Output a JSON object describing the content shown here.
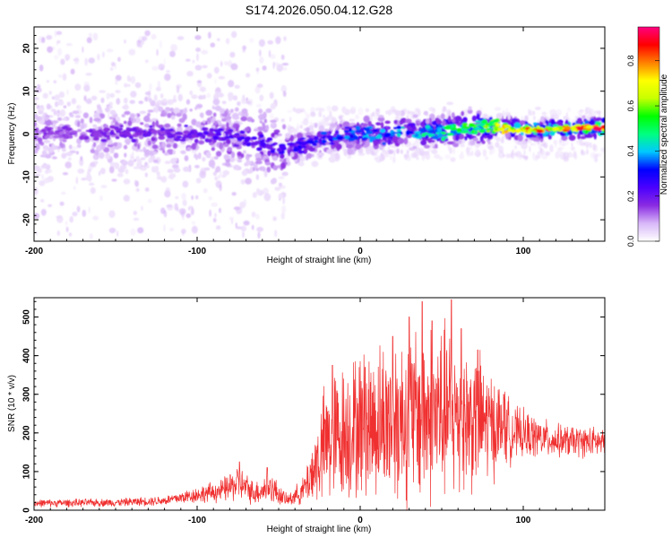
{
  "title": "S174.2026.050.04.12.G28",
  "chart_data": [
    {
      "type": "heatmap",
      "xlabel": "Height of straight line (km)",
      "ylabel": "Frequency (Hz)",
      "xlim": [
        -200,
        150
      ],
      "ylim": [
        -25,
        25
      ],
      "xticks": [
        -200,
        -100,
        0,
        100
      ],
      "yticks": [
        -20,
        -10,
        0,
        10,
        20
      ],
      "colorbar": {
        "label": "Normalized spectral amplitude",
        "range": [
          0.0,
          0.95
        ],
        "ticks": [
          0.0,
          0.2,
          0.4,
          0.6,
          0.8
        ],
        "stops": [
          "#ffffff",
          "#d8b8f8",
          "#8a2be2",
          "#4b00ff",
          "#0000ff",
          "#00c8ff",
          "#00ff80",
          "#00ff00",
          "#c8ff00",
          "#ffff00",
          "#ff8000",
          "#ff0000",
          "#ff0080"
        ]
      },
      "ridge_center_hz": [
        {
          "x": -200,
          "f": 0
        },
        {
          "x": -150,
          "f": 0.3
        },
        {
          "x": -100,
          "f": 0
        },
        {
          "x": -75,
          "f": -1
        },
        {
          "x": -50,
          "f": -3
        },
        {
          "x": -40,
          "f": -3
        },
        {
          "x": -20,
          "f": -1
        },
        {
          "x": 0,
          "f": 0
        },
        {
          "x": 40,
          "f": 0.5
        },
        {
          "x": 80,
          "f": 2
        },
        {
          "x": 100,
          "f": 1
        },
        {
          "x": 150,
          "f": 1.5
        }
      ],
      "amplitude_trend": [
        {
          "x": -200,
          "a": 0.15
        },
        {
          "x": -100,
          "a": 0.2
        },
        {
          "x": -50,
          "a": 0.25
        },
        {
          "x": 0,
          "a": 0.35
        },
        {
          "x": 50,
          "a": 0.45
        },
        {
          "x": 80,
          "a": 0.6
        },
        {
          "x": 100,
          "a": 0.75
        },
        {
          "x": 150,
          "a": 0.85
        }
      ]
    },
    {
      "type": "line",
      "xlabel": "Height of straight line (km)",
      "ylabel": "SNR (10 * v/v)",
      "xlim": [
        -200,
        150
      ],
      "ylim": [
        0,
        550
      ],
      "xticks": [
        -200,
        -100,
        0,
        100
      ],
      "yticks": [
        0,
        100,
        200,
        300,
        400,
        500
      ],
      "color": "#f03030",
      "envelope": [
        {
          "x": -200,
          "mean": 18,
          "spread": 12
        },
        {
          "x": -150,
          "mean": 20,
          "spread": 12
        },
        {
          "x": -120,
          "mean": 25,
          "spread": 15
        },
        {
          "x": -100,
          "mean": 40,
          "spread": 25
        },
        {
          "x": -85,
          "mean": 50,
          "spread": 35
        },
        {
          "x": -75,
          "mean": 70,
          "spread": 55
        },
        {
          "x": -65,
          "mean": 45,
          "spread": 35
        },
        {
          "x": -55,
          "mean": 60,
          "spread": 50
        },
        {
          "x": -45,
          "mean": 25,
          "spread": 18
        },
        {
          "x": -35,
          "mean": 50,
          "spread": 40
        },
        {
          "x": -20,
          "mean": 180,
          "spread": 200
        },
        {
          "x": 0,
          "mean": 220,
          "spread": 220
        },
        {
          "x": 25,
          "mean": 240,
          "spread": 260
        },
        {
          "x": 50,
          "mean": 250,
          "spread": 280
        },
        {
          "x": 75,
          "mean": 230,
          "spread": 200
        },
        {
          "x": 95,
          "mean": 200,
          "spread": 80
        },
        {
          "x": 120,
          "mean": 180,
          "spread": 50
        },
        {
          "x": 150,
          "mean": 175,
          "spread": 45
        }
      ],
      "peaks": [
        {
          "x": 20,
          "y": 450
        },
        {
          "x": 30,
          "y": 500
        },
        {
          "x": 38,
          "y": 540
        },
        {
          "x": 44,
          "y": 490
        },
        {
          "x": 56,
          "y": 545
        },
        {
          "x": 62,
          "y": 470
        },
        {
          "x": -17,
          "y": 375
        },
        {
          "x": 3,
          "y": 370
        },
        {
          "x": 72,
          "y": 415
        },
        {
          "x": 88,
          "y": 300
        },
        {
          "x": -74,
          "y": 125
        },
        {
          "x": -57,
          "y": 110
        }
      ]
    }
  ]
}
